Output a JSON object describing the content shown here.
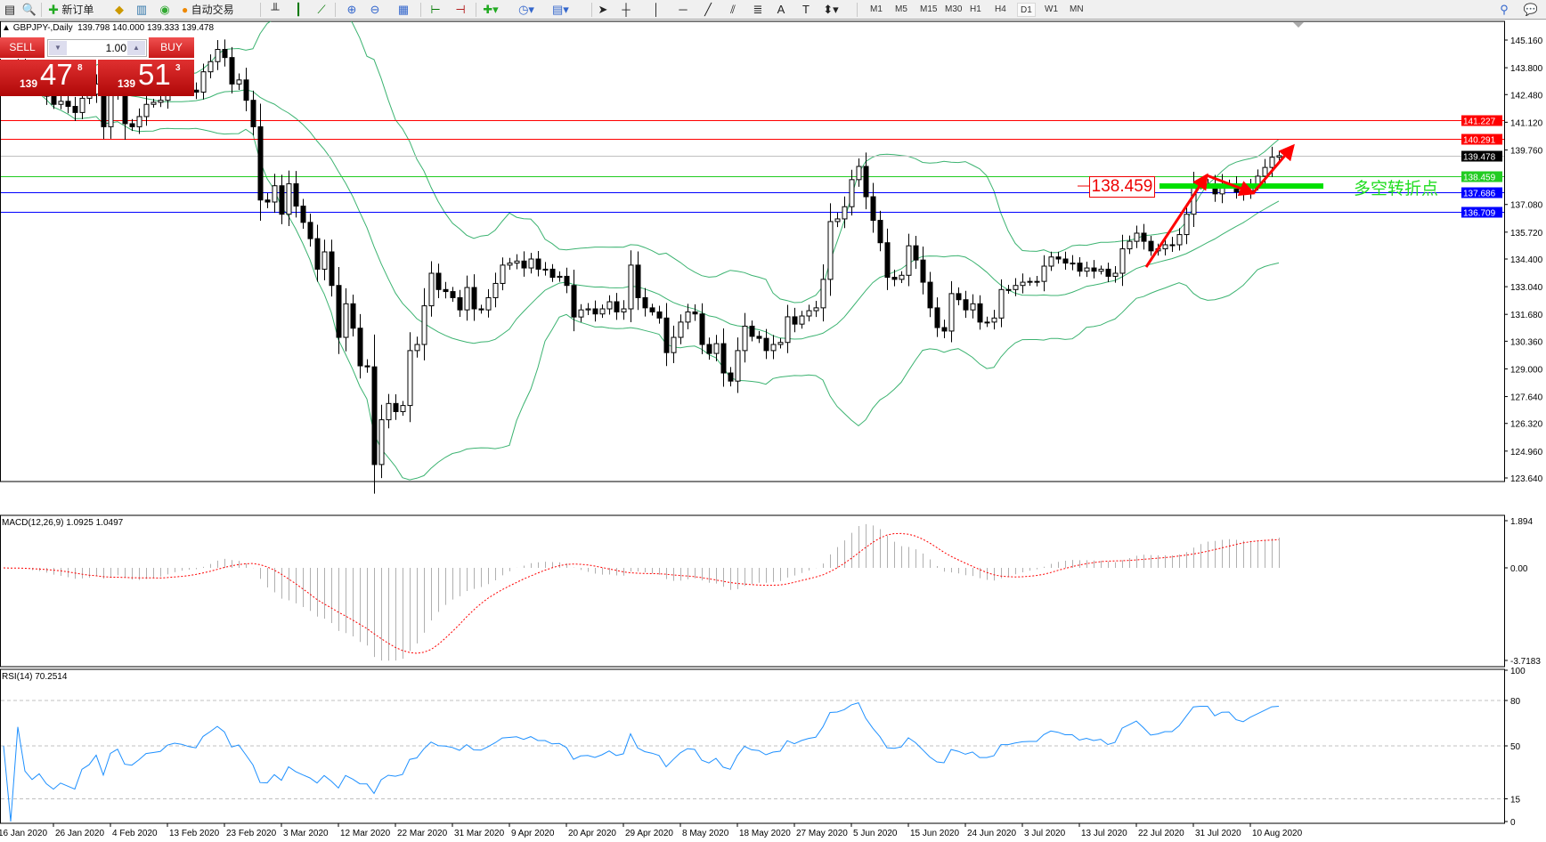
{
  "toolbar": {
    "new_order": "新订单",
    "auto_trade": "自动交易",
    "timeframes": [
      "M1",
      "M5",
      "M15",
      "M30",
      "H1",
      "H4",
      "D1",
      "W1",
      "MN"
    ],
    "active_timeframe": "D1"
  },
  "chart": {
    "symbol_info": "GBPJPY-,Daily",
    "ohlc": "139.798 140.000 139.333 139.478"
  },
  "trade_panel": {
    "sell_label": "SELL",
    "buy_label": "BUY",
    "lot": "1.00",
    "sell_price": {
      "prefix": "139",
      "main": "47",
      "sup": "8"
    },
    "buy_price": {
      "prefix": "139",
      "main": "51",
      "sup": "3"
    }
  },
  "colors": {
    "bands": "#3cb371",
    "resistance": "#ff0000",
    "support": "#0000ff",
    "pivot": "#22cc22",
    "bid": "#c0c0c0",
    "macd_signal": "#ff0000",
    "rsi": "#1e90ff"
  },
  "chart_data": {
    "type": "candlestick",
    "first_open": 143.8,
    "closes": [
      143.6,
      143.3,
      143.8,
      143.1,
      142.8,
      142.9,
      142.4,
      142.0,
      142.15,
      141.9,
      141.6,
      142.3,
      142.5,
      143.0,
      140.9,
      142.6,
      143.0,
      141.05,
      140.9,
      141.4,
      142.0,
      142.1,
      142.2,
      142.8,
      143.0,
      142.9,
      142.7,
      142.6,
      143.6,
      144.1,
      144.7,
      144.3,
      143.0,
      143.2,
      142.2,
      140.9,
      137.3,
      137.2,
      138.0,
      136.6,
      138.1,
      137.0,
      136.2,
      135.4,
      133.9,
      134.75,
      133.1,
      130.55,
      132.2,
      131.0,
      129.15,
      129.1,
      124.3,
      126.5,
      127.3,
      126.9,
      127.2,
      129.9,
      130.2,
      132.1,
      133.7,
      132.9,
      132.8,
      132.5,
      131.9,
      133.0,
      131.95,
      131.9,
      132.5,
      133.2,
      134.1,
      134.2,
      134.3,
      133.96,
      134.4,
      133.9,
      133.9,
      133.5,
      133.55,
      133.1,
      131.55,
      131.9,
      131.95,
      131.7,
      131.95,
      132.3,
      131.8,
      131.95,
      134.1,
      132.5,
      132.0,
      131.8,
      131.5,
      129.8,
      130.55,
      131.3,
      131.8,
      131.7,
      130.2,
      129.76,
      130.24,
      128.8,
      128.4,
      129.9,
      131.1,
      130.6,
      130.5,
      129.9,
      130.2,
      130.3,
      131.56,
      131.2,
      131.6,
      131.86,
      132.0,
      133.4,
      136.24,
      136.37,
      136.97,
      138.3,
      138.95,
      137.46,
      136.3,
      135.2,
      133.5,
      133.4,
      133.6,
      135.05,
      134.35,
      133.26,
      132.0,
      131.03,
      130.86,
      132.7,
      132.4,
      131.9,
      132.2,
      131.3,
      131.3,
      131.5,
      132.9,
      132.9,
      133.1,
      133.26,
      133.3,
      133.3,
      134.05,
      134.5,
      134.4,
      134.2,
      134.2,
      133.8,
      133.96,
      133.8,
      133.9,
      133.55,
      133.7,
      134.9,
      135.27,
      135.67,
      135.27,
      134.8,
      134.9,
      135.1,
      135.1,
      135.6,
      136.6,
      137.99,
      138.1,
      138.1,
      137.6,
      138.07,
      138.1,
      137.7,
      137.6,
      138.07,
      138.47,
      138.9,
      139.4,
      139.478
    ],
    "price_axis": {
      "range": [
        123.64,
        145.16
      ],
      "ticks": [
        "145.160",
        "143.800",
        "142.480",
        "141.120",
        "139.760",
        "137.080",
        "135.720",
        "134.400",
        "133.040",
        "131.680",
        "130.360",
        "129.000",
        "127.640",
        "126.320",
        "124.960",
        "123.640"
      ]
    },
    "date_ticks": [
      {
        "label": "16 Jan 2020",
        "bar": -1
      },
      {
        "label": "26 Jan 2020",
        "bar": 7
      },
      {
        "label": "4 Feb 2020",
        "bar": 15
      },
      {
        "label": "13 Feb 2020",
        "bar": 23
      },
      {
        "label": "23 Feb 2020",
        "bar": 31
      },
      {
        "label": "3 Mar 2020",
        "bar": 39
      },
      {
        "label": "12 Mar 2020",
        "bar": 47
      },
      {
        "label": "22 Mar 2020",
        "bar": 55
      },
      {
        "label": "31 Mar 2020",
        "bar": 63
      },
      {
        "label": "9 Apr 2020",
        "bar": 71
      },
      {
        "label": "20 Apr 2020",
        "bar": 79
      },
      {
        "label": "29 Apr 2020",
        "bar": 87
      },
      {
        "label": "8 May 2020",
        "bar": 95
      },
      {
        "label": "18 May 2020",
        "bar": 103
      },
      {
        "label": "27 May 2020",
        "bar": 111
      },
      {
        "label": "5 Jun 2020",
        "bar": 119
      },
      {
        "label": "15 Jun 2020",
        "bar": 127
      },
      {
        "label": "24 Jun 2020",
        "bar": 135
      },
      {
        "label": "3 Jul 2020",
        "bar": 143
      },
      {
        "label": "13 Jul 2020",
        "bar": 151
      },
      {
        "label": "22 Jul 2020",
        "bar": 159
      },
      {
        "label": "31 Jul 2020",
        "bar": 167
      },
      {
        "label": "10 Aug 2020",
        "bar": 175
      }
    ],
    "hlines": [
      {
        "price": 141.227,
        "label": "141.227",
        "kind": "resistance"
      },
      {
        "price": 140.291,
        "label": "140.291",
        "kind": "resistance"
      },
      {
        "price": 139.478,
        "label": "139.478",
        "kind": "bid"
      },
      {
        "price": 138.459,
        "label": "138.459",
        "kind": "pivot"
      },
      {
        "price": 137.686,
        "label": "137.686",
        "kind": "support"
      },
      {
        "price": 136.709,
        "label": "136.709",
        "kind": "support"
      }
    ],
    "annotation": {
      "price_label": "138.459",
      "text": "多空转折点"
    },
    "macd": {
      "label": "MACD(12,26,9) 1.0925 1.0497",
      "range": [
        -3.7183,
        1.894
      ],
      "ticks": [
        "1.894",
        "0.00",
        "-3.7183"
      ]
    },
    "rsi": {
      "label": "RSI(14) 70.2514",
      "levels": [
        80,
        50,
        15
      ],
      "ticks": [
        "100",
        "80",
        "50",
        "15",
        "0"
      ]
    }
  }
}
